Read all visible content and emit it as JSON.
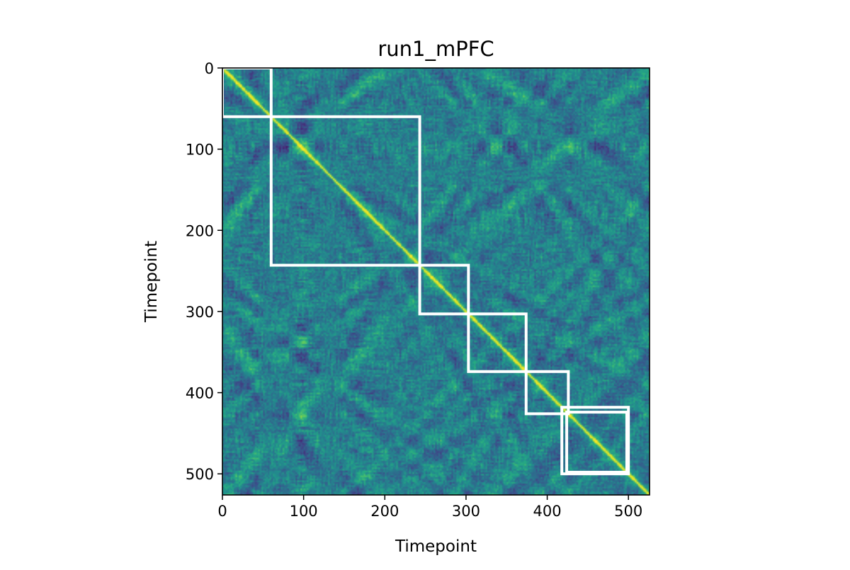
{
  "chart_data": {
    "type": "heatmap",
    "title": "run1_mPFC",
    "xlabel": "Timepoint",
    "ylabel": "Timepoint",
    "n_timepoints": 526,
    "xlim": [
      0,
      526
    ],
    "ylim": [
      526,
      0
    ],
    "x_ticks": [
      0,
      100,
      200,
      300,
      400,
      500
    ],
    "y_ticks": [
      0,
      100,
      200,
      300,
      400,
      500
    ],
    "colormap": "viridis",
    "colorbar": false,
    "grid": false,
    "diagonal": "high correlation (yellow) along the main diagonal",
    "event_boundaries": [
      {
        "start": 0,
        "end": 60
      },
      {
        "start": 60,
        "end": 243
      },
      {
        "start": 243,
        "end": 303
      },
      {
        "start": 303,
        "end": 374
      },
      {
        "start": 374,
        "end": 426
      },
      {
        "start": 418,
        "end": 500
      },
      {
        "start": 424,
        "end": 498
      }
    ],
    "box_color": "#ffffff"
  }
}
